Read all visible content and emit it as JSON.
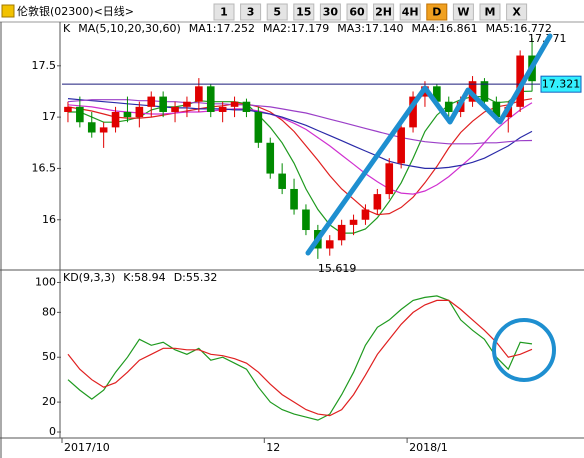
{
  "header": {
    "title": "伦敦银(02300)<日线>",
    "periods": [
      "1",
      "3",
      "5",
      "15",
      "30",
      "60",
      "2H",
      "4H",
      "D",
      "W",
      "M",
      "X"
    ],
    "active": "D"
  },
  "chart_data": [
    {
      "type": "candlestick",
      "mode": "K",
      "ma_label": "MA(5,10,20,30,60)",
      "up_color": "#e00000",
      "down_color": "#008a00",
      "ylim": [
        15.53,
        17.8
      ],
      "yticks": [
        16,
        16.5,
        17,
        17.5
      ],
      "hline": 17.321,
      "hline_color": "#1a1a7a",
      "ohlc": [
        [
          17.05,
          17.15,
          16.95,
          17.1
        ],
        [
          17.1,
          17.2,
          16.9,
          16.95
        ],
        [
          16.95,
          17.05,
          16.8,
          16.85
        ],
        [
          16.85,
          16.95,
          16.7,
          16.9
        ],
        [
          16.9,
          17.1,
          16.85,
          17.05
        ],
        [
          17.05,
          17.2,
          16.95,
          17.0
        ],
        [
          17.0,
          17.15,
          16.9,
          17.1
        ],
        [
          17.1,
          17.25,
          17.0,
          17.2
        ],
        [
          17.2,
          17.25,
          17.0,
          17.05
        ],
        [
          17.05,
          17.15,
          16.95,
          17.1
        ],
        [
          17.1,
          17.2,
          17.0,
          17.15
        ],
        [
          17.15,
          17.38,
          17.05,
          17.3
        ],
        [
          17.3,
          17.32,
          17.0,
          17.05
        ],
        [
          17.05,
          17.15,
          16.95,
          17.1
        ],
        [
          17.1,
          17.2,
          17.0,
          17.15
        ],
        [
          17.15,
          17.18,
          17.0,
          17.05
        ],
        [
          17.05,
          17.1,
          16.7,
          16.75
        ],
        [
          16.75,
          16.8,
          16.4,
          16.45
        ],
        [
          16.45,
          16.55,
          16.25,
          16.3
        ],
        [
          16.3,
          16.4,
          16.05,
          16.1
        ],
        [
          16.1,
          16.15,
          15.85,
          15.9
        ],
        [
          15.9,
          15.95,
          15.619,
          15.72
        ],
        [
          15.72,
          15.85,
          15.65,
          15.8
        ],
        [
          15.8,
          16.0,
          15.75,
          15.95
        ],
        [
          15.95,
          16.05,
          15.85,
          16.0
        ],
        [
          16.0,
          16.15,
          15.95,
          16.1
        ],
        [
          16.1,
          16.3,
          16.05,
          16.25
        ],
        [
          16.25,
          16.6,
          16.2,
          16.55
        ],
        [
          16.55,
          16.95,
          16.5,
          16.9
        ],
        [
          16.9,
          17.25,
          16.85,
          17.2
        ],
        [
          17.2,
          17.35,
          17.1,
          17.3
        ],
        [
          17.3,
          17.32,
          17.1,
          17.15
        ],
        [
          17.15,
          17.2,
          16.95,
          17.05
        ],
        [
          17.05,
          17.2,
          17.0,
          17.15
        ],
        [
          17.15,
          17.4,
          17.1,
          17.35
        ],
        [
          17.35,
          17.38,
          17.1,
          17.15
        ],
        [
          17.15,
          17.2,
          16.95,
          17.0
        ],
        [
          17.0,
          17.15,
          16.85,
          17.1
        ],
        [
          17.1,
          17.65,
          17.05,
          17.6
        ],
        [
          17.6,
          17.771,
          17.25,
          17.35
        ]
      ],
      "series": [
        {
          "name": "MA1:17.252",
          "color": "#1f9a1f",
          "values": [
            17.05,
            17.05,
            17.0,
            16.95,
            16.95,
            16.97,
            17.0,
            17.07,
            17.1,
            17.1,
            17.12,
            17.16,
            17.15,
            17.15,
            17.15,
            17.13,
            17.02,
            16.9,
            16.75,
            16.55,
            16.3,
            16.1,
            15.95,
            15.87,
            15.87,
            15.91,
            16.02,
            16.18,
            16.36,
            16.6,
            16.86,
            17.02,
            17.12,
            17.17,
            17.2,
            17.2,
            17.14,
            17.15,
            17.25,
            17.252
          ]
        },
        {
          "name": "MA2:17.179",
          "color": "#e02020",
          "values": [
            17.1,
            17.08,
            17.06,
            17.03,
            17.0,
            16.99,
            16.99,
            17.0,
            17.02,
            17.04,
            17.06,
            17.08,
            17.1,
            17.11,
            17.13,
            17.13,
            17.1,
            17.05,
            16.97,
            16.86,
            16.72,
            16.58,
            16.43,
            16.3,
            16.2,
            16.1,
            16.05,
            16.06,
            16.12,
            16.22,
            16.36,
            16.52,
            16.7,
            16.85,
            16.96,
            17.05,
            17.1,
            17.12,
            17.16,
            17.179
          ]
        },
        {
          "name": "MA3:17.140",
          "color": "#d030d0",
          "values": [
            17.12,
            17.11,
            17.1,
            17.08,
            17.06,
            17.05,
            17.04,
            17.03,
            17.03,
            17.04,
            17.05,
            17.05,
            17.06,
            17.07,
            17.08,
            17.08,
            17.06,
            17.03,
            16.99,
            16.94,
            16.88,
            16.8,
            16.72,
            16.63,
            16.54,
            16.45,
            16.37,
            16.3,
            16.26,
            16.25,
            16.28,
            16.34,
            16.42,
            16.52,
            16.62,
            16.75,
            16.88,
            16.98,
            17.07,
            17.14
          ]
        },
        {
          "name": "MA4:16.861",
          "color": "#2a2aa8",
          "values": [
            17.18,
            17.17,
            17.16,
            17.15,
            17.14,
            17.13,
            17.12,
            17.11,
            17.1,
            17.09,
            17.09,
            17.08,
            17.08,
            17.08,
            17.07,
            17.07,
            17.05,
            17.03,
            17.0,
            16.96,
            16.92,
            16.87,
            16.82,
            16.77,
            16.72,
            16.67,
            16.62,
            16.57,
            16.54,
            16.52,
            16.5,
            16.5,
            16.51,
            16.53,
            16.56,
            16.6,
            16.66,
            16.72,
            16.8,
            16.861
          ]
        },
        {
          "name": "MA5:16.772",
          "color": "#9b3fc8",
          "values": [
            17.15,
            17.16,
            17.17,
            17.17,
            17.17,
            17.17,
            17.16,
            17.16,
            17.15,
            17.15,
            17.14,
            17.14,
            17.13,
            17.13,
            17.12,
            17.12,
            17.11,
            17.1,
            17.08,
            17.06,
            17.04,
            17.01,
            16.98,
            16.95,
            16.92,
            16.89,
            16.86,
            16.83,
            16.8,
            16.78,
            16.76,
            16.75,
            16.74,
            16.74,
            16.74,
            16.75,
            16.75,
            16.76,
            16.77,
            16.772
          ]
        }
      ]
    },
    {
      "type": "line",
      "title": "KD(9,3,3)",
      "ylim": [
        -4,
        107
      ],
      "yticks": [
        0,
        20,
        50,
        80,
        100
      ],
      "categories": [
        "2017/10",
        null,
        null,
        null,
        null,
        null,
        null,
        null,
        null,
        null,
        null,
        null,
        null,
        null,
        null,
        null,
        null,
        "12",
        null,
        null,
        null,
        null,
        null,
        null,
        null,
        null,
        null,
        null,
        null,
        "2018/1",
        null,
        null,
        null,
        null,
        null,
        null,
        null,
        null,
        null,
        null
      ],
      "series": [
        {
          "name": "K:58.94",
          "color": "#1f9a1f",
          "values": [
            35,
            28,
            22,
            28,
            40,
            50,
            62,
            58,
            60,
            55,
            52,
            56,
            48,
            50,
            46,
            42,
            30,
            20,
            15,
            12,
            10,
            8,
            12,
            25,
            40,
            58,
            70,
            75,
            82,
            88,
            90,
            91,
            88,
            75,
            68,
            62,
            50,
            42,
            60,
            58.94
          ]
        },
        {
          "name": "D:55.32",
          "color": "#e02020",
          "values": [
            52,
            42,
            35,
            30,
            33,
            40,
            48,
            52,
            56,
            56,
            55,
            55,
            52,
            51,
            49,
            46,
            40,
            32,
            25,
            20,
            15,
            12,
            11,
            15,
            25,
            38,
            52,
            62,
            72,
            80,
            85,
            88,
            88,
            82,
            75,
            68,
            60,
            50,
            52,
            55.32
          ]
        }
      ]
    }
  ]
}
